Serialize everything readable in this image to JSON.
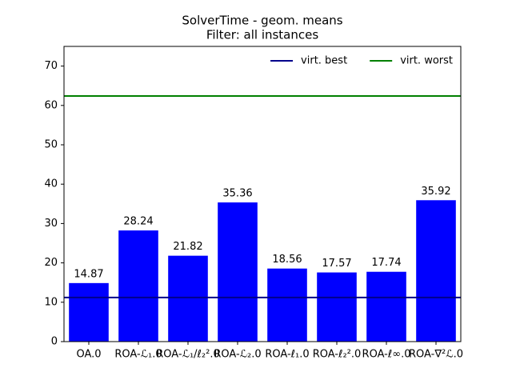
{
  "chart_data": {
    "type": "bar",
    "title": "SolverTime - geom. means",
    "subtitle": "Filter: all instances",
    "categories": [
      "OA.0",
      "ROA-ℒ₁.0",
      "ROA-ℒ₁/ℓ₂².0",
      "ROA-ℒ₂.0",
      "ROA-ℓ₁.0",
      "ROA-ℓ₂².0",
      "ROA-ℓ∞.0",
      "ROA-∇²ℒ.0"
    ],
    "values": [
      14.87,
      28.24,
      21.82,
      35.36,
      18.56,
      17.57,
      17.74,
      35.92
    ],
    "color": "#0000ff",
    "reference_lines": [
      {
        "name": "virt. best",
        "color": "#00008b",
        "value": 11.2
      },
      {
        "name": "virt. worst",
        "color": "#008000",
        "value": 62.4
      }
    ],
    "ylim": [
      0,
      75
    ],
    "yticks": [
      0,
      10,
      20,
      30,
      40,
      50,
      60,
      70
    ],
    "legend": "upper right"
  }
}
